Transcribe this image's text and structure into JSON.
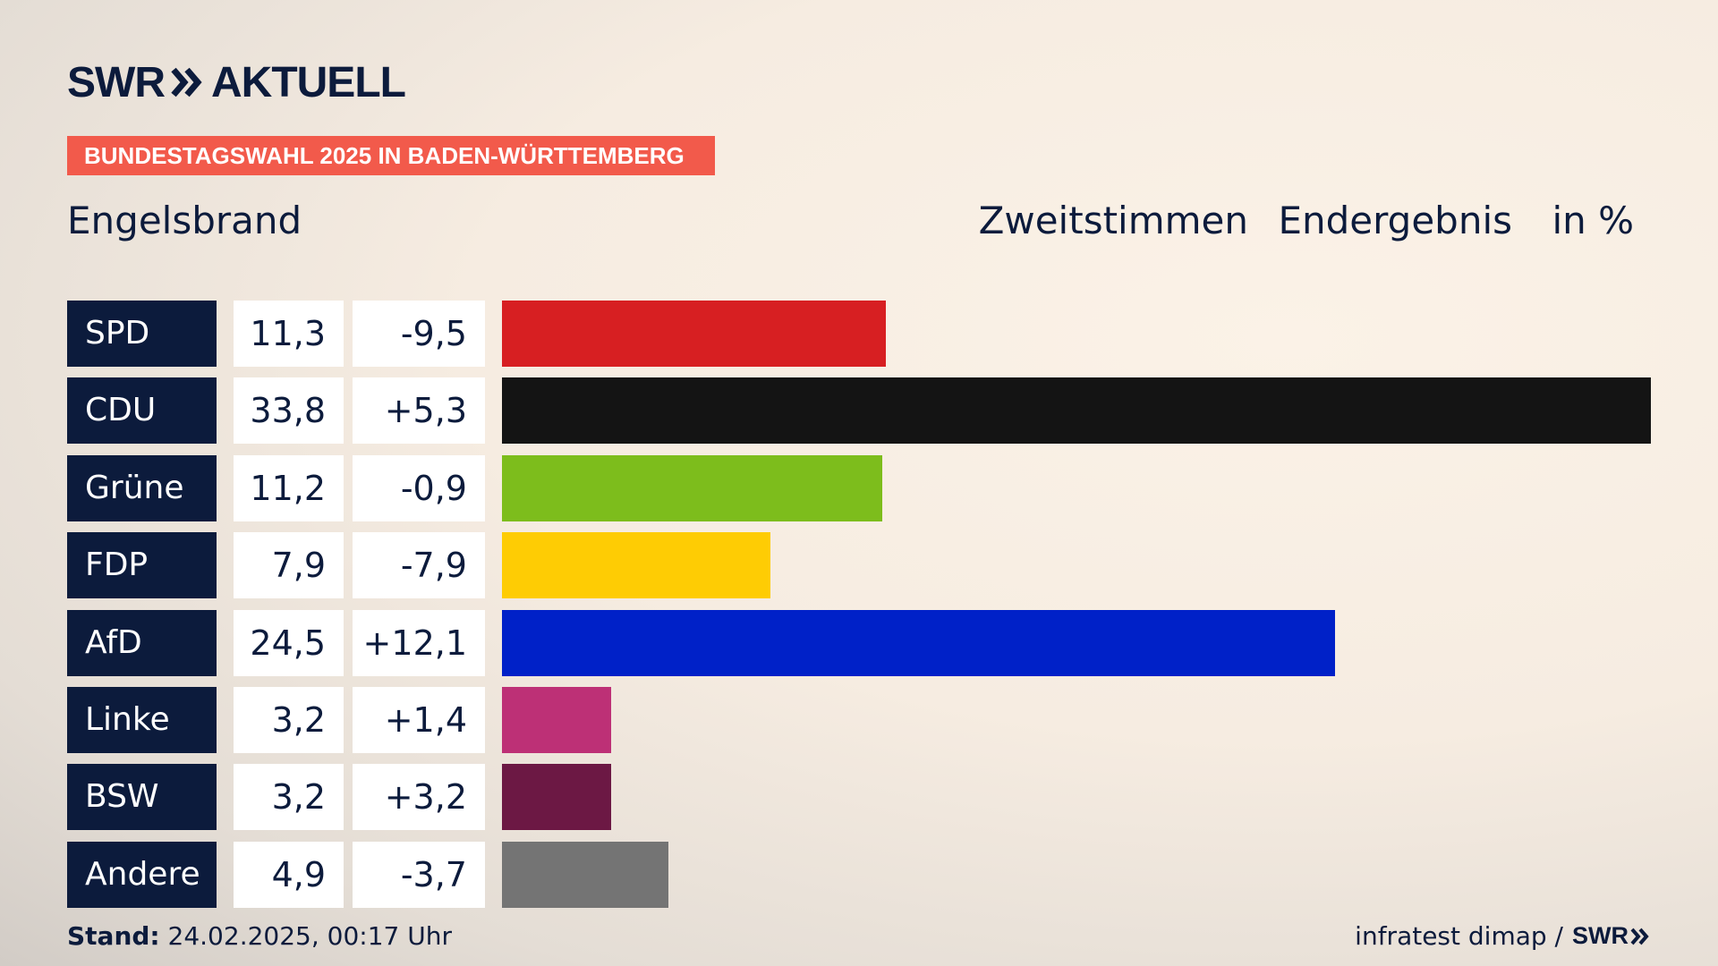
{
  "logo": {
    "brand": "SWR",
    "name": "AKTUELL"
  },
  "banner": "BUNDESTAGSWAHL 2025 IN BADEN-WÜRTTEMBERG",
  "place": "Engelsbrand",
  "header": {
    "vote_type": "Zweitstimmen",
    "status": "Endergebnis",
    "unit": "in %"
  },
  "rows": [
    {
      "party": "SPD",
      "value": "11,3",
      "diff": "-9,5"
    },
    {
      "party": "CDU",
      "value": "33,8",
      "diff": "+5,3"
    },
    {
      "party": "Grüne",
      "value": "11,2",
      "diff": "-0,9"
    },
    {
      "party": "FDP",
      "value": "7,9",
      "diff": "-7,9"
    },
    {
      "party": "AfD",
      "value": "24,5",
      "diff": "+12,1"
    },
    {
      "party": "Linke",
      "value": "3,2",
      "diff": "+1,4"
    },
    {
      "party": "BSW",
      "value": "3,2",
      "diff": "+3,2"
    },
    {
      "party": "Andere",
      "value": "4,9",
      "diff": "-3,7"
    }
  ],
  "chart_data": {
    "type": "bar",
    "categories": [
      "SPD",
      "CDU",
      "Grüne",
      "FDP",
      "AfD",
      "Linke",
      "BSW",
      "Andere"
    ],
    "values": [
      11.3,
      33.8,
      11.2,
      7.9,
      24.5,
      3.2,
      3.2,
      4.9
    ],
    "change": [
      -9.5,
      5.3,
      -0.9,
      -7.9,
      12.1,
      1.4,
      3.2,
      -3.7
    ],
    "colors": [
      "#d71f22",
      "#141414",
      "#7dbd1c",
      "#fecc04",
      "#0021c8",
      "#bd3076",
      "#6c1844",
      "#747474"
    ],
    "orientation": "horizontal",
    "xlim": [
      0,
      33.8
    ]
  },
  "footer": {
    "stand_label": "Stand:",
    "stand_value": "24.02.2025, 00:17 Uhr",
    "source": "infratest dimap /",
    "source_brand": "SWR"
  }
}
